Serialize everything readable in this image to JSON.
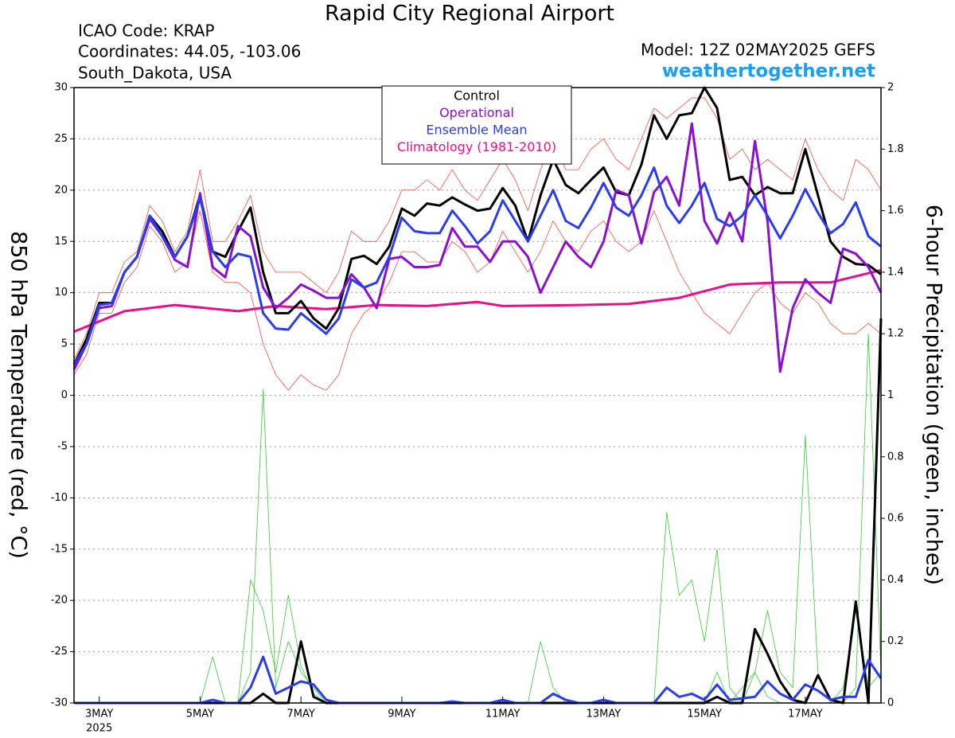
{
  "chart_data": {
    "type": "line",
    "title": "Rapid City Regional Airport",
    "info": [
      "ICAO Code: KRAP",
      "Coordinates: 44.05, -103.06",
      "South_Dakota, USA"
    ],
    "model": "Model: 12Z 02MAY2025 GEFS",
    "site": "weathertogether.net",
    "ylabel": "850 hPa Temperature (red, °C)",
    "y2label": "6-hour Precipitation (green, inches)",
    "year": "2025",
    "x": [
      2.5,
      2.75,
      3,
      3.25,
      3.5,
      3.75,
      4,
      4.25,
      4.5,
      4.75,
      5,
      5.25,
      5.5,
      5.75,
      6,
      6.25,
      6.5,
      6.75,
      7,
      7.25,
      7.5,
      7.75,
      8,
      8.25,
      8.5,
      8.75,
      9,
      9.25,
      9.5,
      9.75,
      10,
      10.25,
      10.5,
      10.75,
      11,
      11.25,
      11.5,
      11.75,
      12,
      12.25,
      12.5,
      12.75,
      13,
      13.25,
      13.5,
      13.75,
      14,
      14.25,
      14.5,
      14.75,
      15,
      15.25,
      15.5,
      15.75,
      16,
      16.25,
      16.5,
      16.75,
      17,
      17.25,
      17.5,
      17.75,
      18,
      18.25,
      18.5
    ],
    "xlim": [
      2.5,
      18.5
    ],
    "xticks": [
      {
        "value": 3,
        "label": "3MAY"
      },
      {
        "value": 5,
        "label": "5MAY"
      },
      {
        "value": 7,
        "label": "7MAY"
      },
      {
        "value": 9,
        "label": "9MAY"
      },
      {
        "value": 11,
        "label": "11MAY"
      },
      {
        "value": 13,
        "label": "13MAY"
      },
      {
        "value": 15,
        "label": "15MAY"
      },
      {
        "value": 17,
        "label": "17MAY"
      }
    ],
    "ylim": [
      -30,
      30
    ],
    "yticks": [
      -30,
      -25,
      -20,
      -15,
      -10,
      -5,
      0,
      5,
      10,
      15,
      20,
      25,
      30
    ],
    "y2lim": [
      0,
      2
    ],
    "y2ticks": [
      0,
      0.2,
      0.4,
      0.6,
      0.8,
      1,
      1.2,
      1.4,
      1.6,
      1.8,
      2
    ],
    "grid": true,
    "series": [
      {
        "name": "Control",
        "color": "#000000",
        "values": [
          3,
          5.5,
          9,
          9,
          12,
          13.5,
          17.5,
          16,
          13.5,
          15.5,
          19.5,
          14,
          13.5,
          16,
          18.3,
          12,
          8,
          8,
          9.2,
          7.5,
          6.5,
          8.5,
          13.3,
          13.6,
          12.8,
          14.5,
          18.2,
          17.5,
          18.7,
          18.5,
          19.3,
          18.6,
          18,
          18.2,
          20.2,
          18.5,
          15,
          19.5,
          23,
          20.5,
          19.7,
          21,
          22.2,
          19.8,
          19.5,
          22.5,
          27.3,
          25,
          27.3,
          27.5,
          30,
          28,
          21,
          21.3,
          19.5,
          20.3,
          19.7,
          19.7,
          24,
          19.5,
          15,
          13.5,
          12.8,
          12.7,
          11.8
        ]
      },
      {
        "name": "Operational",
        "color": "#8a10d0",
        "values": [
          2.5,
          5,
          8.5,
          8.7,
          12,
          13.5,
          17.2,
          15.5,
          13.2,
          12.5,
          19.7,
          12.5,
          11.5,
          16.5,
          15.5,
          10.5,
          8.5,
          9.5,
          10.8,
          10.2,
          9.5,
          9.5,
          11.8,
          10.5,
          8.5,
          13.3,
          13.5,
          12.5,
          12.5,
          12.7,
          16.3,
          14.5,
          14.5,
          13,
          15,
          15,
          13.5,
          10,
          12.5,
          15,
          13.5,
          12.5,
          15,
          20,
          19.5,
          14.8,
          19.8,
          21.3,
          18.5,
          26.5,
          17,
          14.8,
          17.8,
          15,
          24.8,
          17,
          2.3,
          8.5,
          11.3,
          10,
          9,
          14.3,
          13.8,
          12.5,
          10
        ]
      },
      {
        "name": "Ensemble Mean",
        "color": "#2a3cf0",
        "values": [
          3,
          5,
          8.8,
          9,
          12,
          13.5,
          17.5,
          15.5,
          13.5,
          15.5,
          19.2,
          14,
          12.5,
          13.8,
          13.5,
          8,
          6.5,
          6.4,
          8,
          7,
          6,
          7.5,
          11.3,
          10.5,
          11,
          13.5,
          17.3,
          16,
          15.8,
          15.8,
          18,
          16.5,
          14.8,
          16,
          19,
          17,
          15,
          17.5,
          20,
          17,
          16.3,
          18.3,
          20.7,
          18.3,
          17.5,
          19.5,
          22.2,
          18.5,
          16.8,
          18.5,
          20.7,
          17.2,
          16.5,
          17.5,
          19.5,
          17.5,
          15.3,
          17.5,
          20.1,
          17.8,
          15.8,
          16.7,
          18.8,
          15.5,
          14.5
        ]
      },
      {
        "name": "Climatology (1981-2010)",
        "color": "#e8108a",
        "x": [
          2.5,
          3,
          3.5,
          4.5,
          5.75,
          6.5,
          7.5,
          8.5,
          9.5,
          10.5,
          11,
          12.5,
          13.5,
          14.5,
          15.5,
          16.5,
          17.5,
          18.5
        ],
        "values": [
          6.2,
          7.2,
          8.2,
          8.8,
          8.2,
          8.7,
          8.4,
          8.8,
          8.7,
          9.1,
          8.7,
          8.8,
          8.9,
          9.5,
          10.8,
          11,
          11,
          12.2
        ]
      },
      {
        "color": "#f0503c",
        "values": [
          3.5,
          6,
          10,
          10,
          13,
          14,
          18.5,
          17,
          14,
          16,
          22,
          15,
          15,
          17,
          19.5,
          14,
          12,
          12,
          12,
          11,
          10,
          12,
          16,
          15,
          15,
          17,
          20,
          20,
          21,
          20,
          22,
          20,
          19,
          21,
          23,
          21,
          18,
          22,
          25,
          22,
          22,
          24,
          25,
          23,
          22,
          25,
          28,
          27,
          28,
          29,
          29,
          27,
          23,
          24,
          22,
          23,
          22,
          21,
          25,
          22,
          20,
          19,
          23,
          22,
          20
        ]
      },
      {
        "color": "#f0503c",
        "values": [
          2,
          4,
          8,
          8,
          11,
          12.5,
          16.5,
          15,
          12,
          13,
          18,
          12,
          11,
          11,
          10,
          5,
          2,
          0.5,
          2,
          1,
          0.5,
          2,
          6,
          8,
          9,
          11,
          14,
          14,
          13,
          13,
          15,
          14,
          12,
          13,
          16,
          14,
          12,
          14,
          17,
          15,
          14,
          16,
          17,
          15,
          14,
          15,
          18,
          15,
          12,
          10,
          8,
          7,
          6,
          8,
          10,
          11,
          9,
          8,
          10,
          9,
          7,
          6,
          6,
          7,
          6
        ]
      },
      {
        "color": "#000000",
        "axis": "y2",
        "values": [
          0,
          0,
          0,
          0,
          0,
          0,
          0,
          0,
          0,
          0,
          0,
          0,
          0,
          0,
          0,
          0.03,
          0,
          0,
          0.2,
          0.02,
          0,
          0,
          0,
          0,
          0,
          0,
          0,
          0,
          0,
          0,
          0,
          0,
          0,
          0,
          0,
          0,
          0,
          0,
          0,
          0,
          0,
          0,
          0,
          0,
          0,
          0,
          0,
          0,
          0,
          0,
          0,
          0.02,
          0,
          0,
          0.24,
          0.16,
          0.07,
          0.01,
          0,
          0.09,
          0.01,
          0,
          0.33,
          0,
          1.25
        ]
      },
      {
        "color": "#2a3cf0",
        "axis": "y2",
        "values": [
          0,
          0,
          0,
          0,
          0,
          0,
          0,
          0,
          0,
          0,
          0,
          0.01,
          0,
          0,
          0.05,
          0.15,
          0.03,
          0.05,
          0.07,
          0.06,
          0.01,
          0,
          0,
          0,
          0,
          0,
          0,
          0,
          0,
          0,
          0.005,
          0,
          0,
          0,
          0.01,
          0,
          0,
          0,
          0.03,
          0.01,
          0,
          0,
          0.01,
          0,
          0,
          0,
          0,
          0.05,
          0.02,
          0.03,
          0.01,
          0.06,
          0.01,
          0.015,
          0.02,
          0.07,
          0.03,
          0.01,
          0.06,
          0.04,
          0.01,
          0.02,
          0.02,
          0.14,
          0.08
        ]
      },
      {
        "color": "#33cc33",
        "axis": "y2",
        "values": [
          0,
          0,
          0,
          0,
          0,
          0,
          0,
          0,
          0,
          0,
          0,
          0,
          0,
          0,
          0.1,
          1.02,
          0.05,
          0.2,
          0.1,
          0.05,
          0,
          0,
          0,
          0,
          0,
          0,
          0,
          0,
          0,
          0,
          0,
          0,
          0,
          0,
          0,
          0,
          0,
          0,
          0,
          0,
          0,
          0,
          0,
          0,
          0,
          0,
          0,
          0,
          0,
          0,
          0,
          0,
          0,
          0,
          0,
          0,
          0,
          0,
          0,
          0,
          0,
          0,
          0,
          0,
          0
        ]
      },
      {
        "color": "#33cc33",
        "axis": "y2",
        "values": [
          0,
          0,
          0,
          0,
          0,
          0,
          0,
          0,
          0,
          0,
          0,
          0.15,
          0,
          0,
          0.4,
          0.3,
          0.1,
          0.35,
          0.12,
          0.03,
          0,
          0,
          0,
          0,
          0,
          0,
          0,
          0,
          0,
          0,
          0,
          0,
          0,
          0,
          0,
          0,
          0,
          0,
          0,
          0,
          0,
          0,
          0,
          0,
          0,
          0,
          0,
          0,
          0,
          0,
          0,
          0.1,
          0,
          0.05,
          0.1,
          0.3,
          0.1,
          0.05,
          0.87,
          0.1,
          0,
          0.05,
          0.3,
          0.05,
          0.1
        ]
      },
      {
        "color": "#33cc33",
        "axis": "y2",
        "values": [
          0,
          0,
          0,
          0,
          0,
          0,
          0,
          0,
          0,
          0,
          0,
          0,
          0,
          0,
          0,
          0,
          0,
          0,
          0,
          0,
          0,
          0,
          0,
          0,
          0,
          0,
          0,
          0,
          0,
          0,
          0,
          0,
          0,
          0,
          0,
          0,
          0,
          0.2,
          0.05,
          0,
          0,
          0,
          0,
          0,
          0,
          0,
          0,
          0.62,
          0.35,
          0.4,
          0.2,
          0.5,
          0.05,
          0,
          0.1,
          0.02,
          0,
          0,
          0,
          0,
          0,
          0,
          0.05,
          1.2,
          0.1
        ]
      }
    ]
  }
}
